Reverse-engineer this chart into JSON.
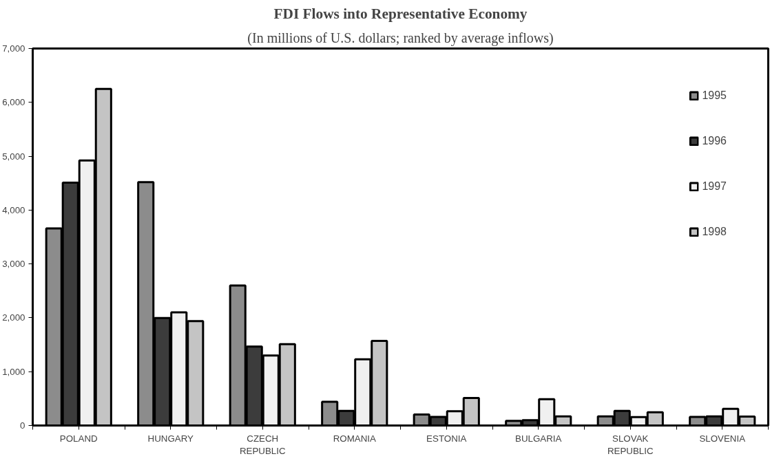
{
  "chart_data": {
    "type": "bar",
    "title": "FDI Flows into Representative Economy",
    "subtitle": "(In millions of U.S. dollars; ranked by average inflows)",
    "categories": [
      "POLAND",
      "HUNGARY",
      "CZECH\nREPUBLIC",
      "ROMANIA",
      "ESTONIA",
      "BULGARIA",
      "SLOVAK\nREPUBLIC",
      "SLOVENIA"
    ],
    "series": [
      {
        "name": "1995",
        "color": "#8c8c8c",
        "values": [
          3660,
          4520,
          2600,
          440,
          205,
          85,
          170,
          160
        ]
      },
      {
        "name": "1996",
        "color": "#3c3c3c",
        "values": [
          4510,
          1995,
          1465,
          270,
          160,
          100,
          270,
          170
        ]
      },
      {
        "name": "1997",
        "color": "#f0f0f0",
        "values": [
          4920,
          2100,
          1300,
          1230,
          265,
          490,
          155,
          310
        ]
      },
      {
        "name": "1998",
        "color": "#c4c4c4",
        "values": [
          6250,
          1940,
          1510,
          1570,
          510,
          170,
          245,
          165
        ]
      }
    ],
    "ylim": [
      0,
      7000
    ],
    "yticks": [
      0,
      {
        "value": 1000,
        "label": "1,000"
      },
      {
        "value": 2000,
        "label": "2,000"
      },
      {
        "value": 3000,
        "label": "3,000"
      },
      {
        "value": 4000,
        "label": "4,000"
      },
      {
        "value": 5000,
        "label": "5,000"
      },
      {
        "value": 6000,
        "label": "6,000"
      },
      {
        "value": 7000,
        "label": "7,000"
      }
    ],
    "grid": false,
    "legend": "top right"
  }
}
